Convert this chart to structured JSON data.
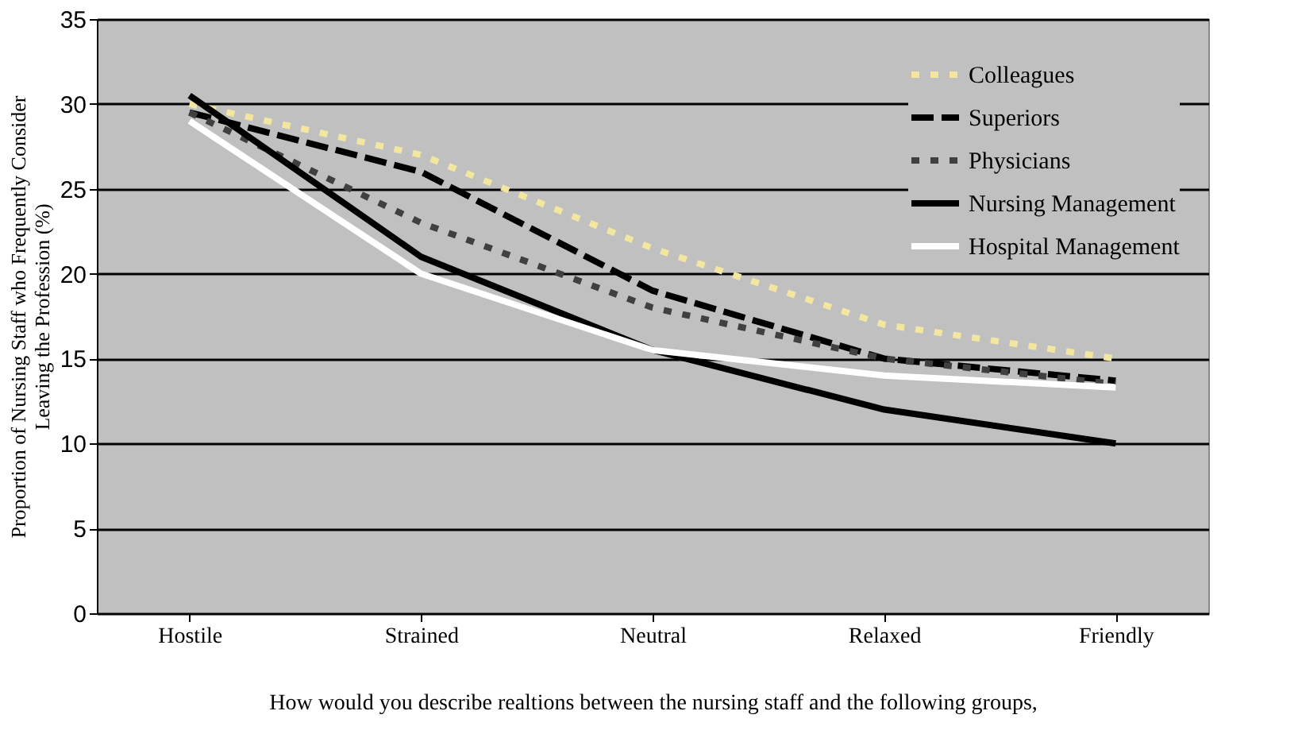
{
  "chart_data": {
    "type": "line",
    "xlabel": "How would you describe realtions between the nursing staff and the following groups,",
    "ylabel": "Proportion of Nursing Staff who Frequently Consider\nLeaving the Profession (%)",
    "categories": [
      "Hostile",
      "Strained",
      "Neutral",
      "Relaxed",
      "Friendly"
    ],
    "series": [
      {
        "name": "Colleagues",
        "color": "#f2e6a0",
        "line_style": "dotted",
        "values": [
          30,
          27,
          21.5,
          17,
          15
        ]
      },
      {
        "name": "Superiors",
        "color": "#000000",
        "line_style": "dashed",
        "values": [
          29.5,
          26,
          19,
          15,
          13.7
        ]
      },
      {
        "name": "Physicians",
        "color": "#404040",
        "line_style": "dotted",
        "values": [
          29.5,
          23,
          18,
          15,
          13.5
        ]
      },
      {
        "name": "Nursing Management",
        "color": "#000000",
        "line_style": "solid",
        "values": [
          30.5,
          21,
          15.5,
          12,
          10
        ]
      },
      {
        "name": "Hospital Management",
        "color": "#ffffff",
        "line_style": "solid",
        "values": [
          29,
          20,
          15.5,
          14,
          13.3
        ]
      }
    ],
    "ylim": [
      0,
      35
    ],
    "yticks": [
      0,
      5,
      10,
      15,
      20,
      25,
      30,
      35
    ],
    "grid": "y",
    "legend": "top right",
    "marker": "none"
  }
}
